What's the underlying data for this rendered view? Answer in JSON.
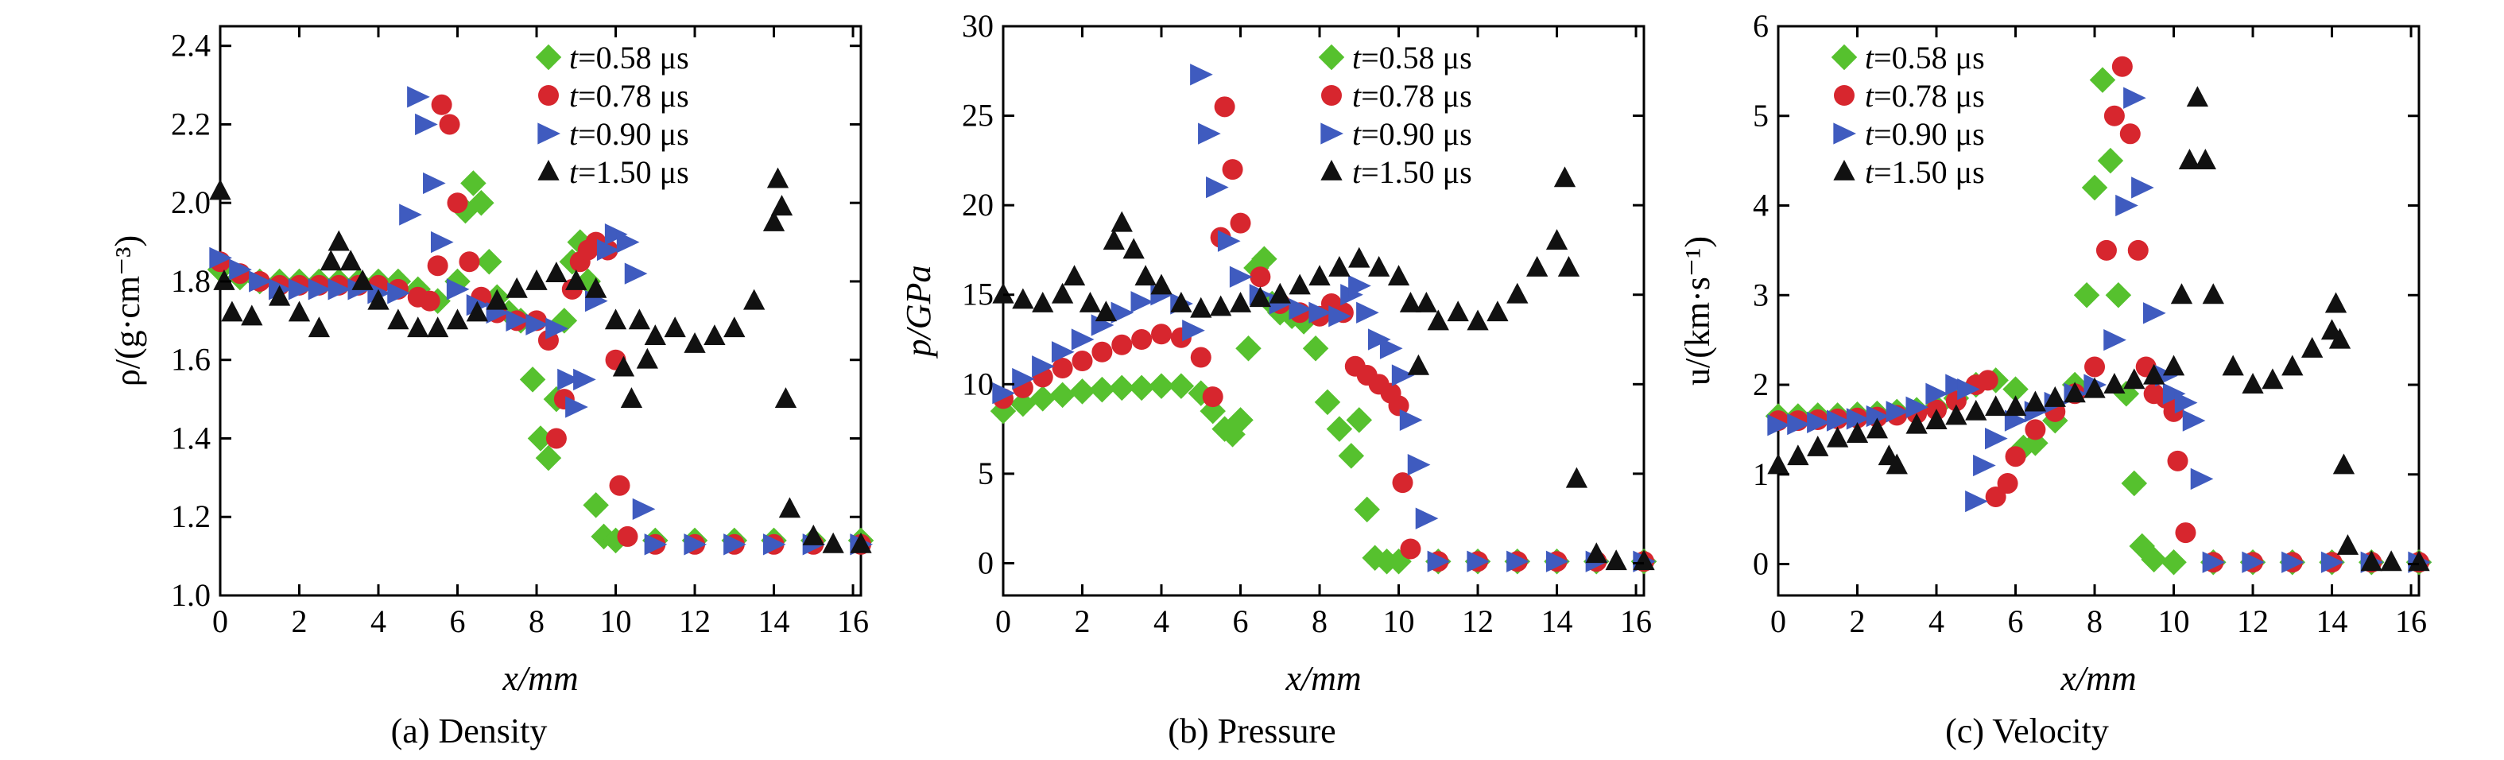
{
  "series_meta": [
    {
      "key": "t058",
      "label": "t=0.58 μs",
      "prefix": "t",
      "suffix": "=0.58 μs",
      "color": "#56c12e",
      "marker": "diamond"
    },
    {
      "key": "t078",
      "label": "t=0.78 μs",
      "prefix": "t",
      "suffix": "=0.78 μs",
      "color": "#d7262e",
      "marker": "circle"
    },
    {
      "key": "t090",
      "label": "t=0.90 μs",
      "prefix": "t",
      "suffix": "=0.90 μs",
      "color": "#3f5bbf",
      "marker": "triangle-right"
    },
    {
      "key": "t150",
      "label": "t=1.50 μs",
      "prefix": "t",
      "suffix": "=1.50 μs",
      "color": "#111111",
      "marker": "triangle-up"
    }
  ],
  "chart_data": [
    {
      "type": "scatter",
      "caption": "(a) Density",
      "xlabel": "x/mm",
      "ylabel": "ρ/(g·cm⁻³)",
      "xlim": [
        0,
        16.2
      ],
      "ylim": [
        1.0,
        2.45
      ],
      "xticks": [
        0,
        2,
        4,
        6,
        8,
        10,
        12,
        14,
        16
      ],
      "yticks": [
        1.0,
        1.2,
        1.4,
        1.6,
        1.8,
        2.0,
        2.2,
        2.4
      ],
      "ytick_decimals": 1,
      "grid": false,
      "legend_position": "top-right",
      "series": [
        {
          "name": "t=0.58 μs",
          "x": [
            0,
            0.5,
            1,
            1.5,
            2,
            2.5,
            3,
            3.5,
            4,
            4.5,
            5,
            5.5,
            6,
            6.2,
            6.4,
            6.6,
            6.8,
            7,
            7.3,
            7.6,
            7.9,
            8.1,
            8.3,
            8.5,
            8.7,
            8.9,
            9.1,
            9.3,
            9.5,
            9.7,
            10,
            11,
            12,
            13,
            14,
            15,
            16.2
          ],
          "y": [
            1.83,
            1.81,
            1.8,
            1.8,
            1.8,
            1.8,
            1.8,
            1.8,
            1.8,
            1.8,
            1.78,
            1.75,
            1.8,
            1.98,
            2.05,
            2.0,
            1.85,
            1.76,
            1.72,
            1.7,
            1.55,
            1.4,
            1.35,
            1.5,
            1.7,
            1.85,
            1.9,
            1.8,
            1.23,
            1.15,
            1.14,
            1.14,
            1.14,
            1.14,
            1.14,
            1.14,
            1.14
          ]
        },
        {
          "name": "t=0.78 μs",
          "x": [
            0,
            0.5,
            1,
            1.5,
            2,
            2.5,
            3,
            3.5,
            4,
            4.5,
            5,
            5.3,
            5.5,
            5.6,
            5.8,
            6,
            6.3,
            6.6,
            7,
            7.5,
            8,
            8.3,
            8.5,
            8.7,
            8.9,
            9.1,
            9.3,
            9.5,
            9.8,
            10,
            10.1,
            10.3,
            11,
            12,
            13,
            14,
            15,
            16.2
          ],
          "y": [
            1.85,
            1.82,
            1.8,
            1.79,
            1.79,
            1.79,
            1.79,
            1.79,
            1.79,
            1.78,
            1.76,
            1.75,
            1.84,
            2.25,
            2.2,
            2.0,
            1.85,
            1.76,
            1.72,
            1.7,
            1.7,
            1.65,
            1.4,
            1.5,
            1.78,
            1.85,
            1.88,
            1.9,
            1.88,
            1.6,
            1.28,
            1.15,
            1.13,
            1.13,
            1.13,
            1.13,
            1.13,
            1.13
          ]
        },
        {
          "name": "t=0.90 μs",
          "x": [
            0,
            0.5,
            1,
            1.5,
            2,
            2.5,
            3,
            3.5,
            4,
            4.5,
            4.8,
            5,
            5.2,
            5.4,
            5.6,
            6,
            6.5,
            7,
            7.5,
            8,
            8.5,
            8.8,
            9,
            9.2,
            9.5,
            9.8,
            10,
            10.3,
            10.5,
            10.7,
            11,
            12,
            13,
            14,
            15,
            16.2
          ],
          "y": [
            1.86,
            1.83,
            1.8,
            1.78,
            1.78,
            1.78,
            1.78,
            1.78,
            1.77,
            1.77,
            1.97,
            2.27,
            2.2,
            2.05,
            1.9,
            1.78,
            1.74,
            1.72,
            1.7,
            1.69,
            1.68,
            1.55,
            1.48,
            1.55,
            1.75,
            1.88,
            1.92,
            1.9,
            1.82,
            1.22,
            1.13,
            1.13,
            1.13,
            1.13,
            1.13,
            1.13
          ]
        },
        {
          "name": "t=1.50 μs",
          "x": [
            0,
            0.1,
            0.3,
            0.8,
            1.5,
            2,
            2.5,
            2.8,
            3,
            3.3,
            3.6,
            4,
            4.5,
            5,
            5.5,
            6,
            6.5,
            7,
            7.5,
            8,
            8.5,
            9,
            9.5,
            10,
            10.2,
            10.4,
            10.6,
            10.8,
            11,
            11.5,
            12,
            12.5,
            13,
            13.5,
            14,
            14.1,
            14.2,
            14.3,
            14.4,
            15,
            15.5,
            16.2
          ],
          "y": [
            2.03,
            1.8,
            1.72,
            1.71,
            1.76,
            1.72,
            1.68,
            1.85,
            1.9,
            1.85,
            1.8,
            1.75,
            1.7,
            1.68,
            1.68,
            1.7,
            1.72,
            1.75,
            1.78,
            1.8,
            1.82,
            1.8,
            1.78,
            1.7,
            1.58,
            1.5,
            1.7,
            1.6,
            1.66,
            1.68,
            1.64,
            1.66,
            1.68,
            1.75,
            1.95,
            2.06,
            1.99,
            1.5,
            1.22,
            1.15,
            1.13,
            1.13
          ]
        }
      ]
    },
    {
      "type": "scatter",
      "caption": "(b) Pressure",
      "xlabel": "x/mm",
      "ylabel": "p/GPa",
      "xlim": [
        0,
        16.2
      ],
      "ylim": [
        -1.8,
        30
      ],
      "xticks": [
        0,
        2,
        4,
        6,
        8,
        10,
        12,
        14,
        16
      ],
      "yticks": [
        0,
        5,
        10,
        15,
        20,
        25,
        30
      ],
      "ytick_decimals": 0,
      "grid": false,
      "legend_position": "top-right",
      "series": [
        {
          "name": "t=0.58 μs",
          "x": [
            0,
            0.5,
            1,
            1.5,
            2,
            2.5,
            3,
            3.5,
            4,
            4.5,
            5,
            5.3,
            5.6,
            5.8,
            6,
            6.2,
            6.4,
            6.6,
            6.8,
            7,
            7.3,
            7.6,
            7.9,
            8.2,
            8.5,
            8.8,
            9,
            9.2,
            9.4,
            9.7,
            10,
            11,
            12,
            13,
            14,
            15,
            16.2
          ],
          "y": [
            8.5,
            8.9,
            9.2,
            9.4,
            9.6,
            9.7,
            9.8,
            9.8,
            9.9,
            9.9,
            9.5,
            8.5,
            7.5,
            7.2,
            8.0,
            12.0,
            16.5,
            17.0,
            14.5,
            14.0,
            13.8,
            13.5,
            12.0,
            9.0,
            7.5,
            6.0,
            8.0,
            3.0,
            0.3,
            0.1,
            0.1,
            0.1,
            0.1,
            0.1,
            0.1,
            0.1,
            0.1
          ]
        },
        {
          "name": "t=0.78 μs",
          "x": [
            0,
            0.5,
            1,
            1.5,
            2,
            2.5,
            3,
            3.5,
            4,
            4.5,
            5,
            5.3,
            5.5,
            5.6,
            5.8,
            6,
            6.5,
            7,
            7.5,
            8,
            8.3,
            8.6,
            8.9,
            9.2,
            9.5,
            9.8,
            10,
            10.1,
            10.3,
            11,
            12,
            13,
            14,
            15,
            16.2
          ],
          "y": [
            9.2,
            9.8,
            10.4,
            10.9,
            11.3,
            11.8,
            12.2,
            12.5,
            12.8,
            12.6,
            11.5,
            9.3,
            18.2,
            25.5,
            22.0,
            19.0,
            16.0,
            14.5,
            14.0,
            13.8,
            14.5,
            14.0,
            11.0,
            10.5,
            10.0,
            9.5,
            8.8,
            4.5,
            0.8,
            0.1,
            0.1,
            0.1,
            0.1,
            0.1,
            0.1
          ]
        },
        {
          "name": "t=0.90 μs",
          "x": [
            0,
            0.5,
            1,
            1.5,
            2,
            2.5,
            3,
            3.5,
            4,
            4.5,
            4.8,
            5,
            5.2,
            5.4,
            5.7,
            6,
            6.5,
            7,
            7.5,
            8,
            8.5,
            8.8,
            9,
            9.2,
            9.5,
            9.8,
            10.1,
            10.3,
            10.5,
            10.7,
            11,
            12,
            13,
            14,
            15,
            16.2
          ],
          "y": [
            9.5,
            10.3,
            11.0,
            11.8,
            12.5,
            13.3,
            14.0,
            14.6,
            15.0,
            14.5,
            13.0,
            27.3,
            24.0,
            21.0,
            18.0,
            16.0,
            15.0,
            14.5,
            14.2,
            14.0,
            13.8,
            15.0,
            15.5,
            14.0,
            12.5,
            12.0,
            10.5,
            8.0,
            5.5,
            2.5,
            0.1,
            0.1,
            0.1,
            0.1,
            0.1,
            0.1
          ]
        },
        {
          "name": "t=1.50 μs",
          "x": [
            0,
            0.5,
            1,
            1.5,
            1.8,
            2.2,
            2.6,
            2.8,
            3,
            3.3,
            3.6,
            4,
            4.5,
            5,
            5.5,
            6,
            6.5,
            7,
            7.5,
            8,
            8.5,
            9,
            9.5,
            10,
            10.3,
            10.5,
            10.7,
            11,
            11.5,
            12,
            12.5,
            13,
            13.5,
            14,
            14.2,
            14.3,
            14.5,
            15,
            15.5,
            16.2
          ],
          "y": [
            15.0,
            14.7,
            14.5,
            15.0,
            16.0,
            14.5,
            14.0,
            18.0,
            19.0,
            17.5,
            16.0,
            15.5,
            14.5,
            14.2,
            14.3,
            14.5,
            14.8,
            15.0,
            15.5,
            16.0,
            16.5,
            17.0,
            16.5,
            16.0,
            14.5,
            11.0,
            14.5,
            13.5,
            14.0,
            13.5,
            14.0,
            15.0,
            16.5,
            18.0,
            21.5,
            16.5,
            4.7,
            0.5,
            0.1,
            0.1
          ]
        }
      ]
    },
    {
      "type": "scatter",
      "caption": "(c) Velocity",
      "xlabel": "x/mm",
      "ylabel": "u/(km·s⁻¹)",
      "xlim": [
        0,
        16.2
      ],
      "ylim": [
        -0.35,
        6
      ],
      "xticks": [
        0,
        2,
        4,
        6,
        8,
        10,
        12,
        14,
        16
      ],
      "yticks": [
        0,
        1,
        2,
        3,
        4,
        5,
        6
      ],
      "ytick_decimals": 0,
      "grid": false,
      "legend_position": "top-left",
      "series": [
        {
          "name": "t=0.58 μs",
          "x": [
            0,
            0.5,
            1,
            1.5,
            2,
            2.5,
            3,
            3.5,
            4,
            4.5,
            5,
            5.5,
            6,
            6.2,
            6.5,
            7,
            7.5,
            7.8,
            8,
            8.2,
            8.4,
            8.6,
            8.8,
            9,
            9.2,
            9.5,
            10,
            11,
            12,
            13,
            14,
            15,
            16.2
          ],
          "y": [
            1.65,
            1.65,
            1.66,
            1.66,
            1.67,
            1.68,
            1.7,
            1.72,
            1.75,
            1.85,
            2.0,
            2.05,
            1.95,
            1.3,
            1.35,
            1.6,
            2.0,
            3.0,
            4.2,
            5.4,
            4.5,
            3.0,
            1.9,
            0.9,
            0.2,
            0.05,
            0.02,
            0.02,
            0.02,
            0.02,
            0.02,
            0.02,
            0.02
          ]
        },
        {
          "name": "t=0.78 μs",
          "x": [
            0,
            0.5,
            1,
            1.5,
            2,
            2.5,
            3,
            3.5,
            4,
            4.5,
            5,
            5.3,
            5.5,
            5.8,
            6,
            6.5,
            7,
            7.5,
            8,
            8.3,
            8.5,
            8.7,
            8.9,
            9.1,
            9.3,
            9.5,
            9.8,
            10,
            10.1,
            10.3,
            11,
            12,
            13,
            14,
            15,
            16.2
          ],
          "y": [
            1.6,
            1.6,
            1.61,
            1.62,
            1.63,
            1.64,
            1.66,
            1.68,
            1.72,
            1.82,
            2.0,
            2.05,
            0.75,
            0.9,
            1.2,
            1.5,
            1.7,
            1.9,
            2.2,
            3.5,
            5.0,
            5.55,
            4.8,
            3.5,
            2.2,
            1.9,
            1.85,
            1.7,
            1.15,
            0.35,
            0.02,
            0.02,
            0.02,
            0.02,
            0.02,
            0.02
          ]
        },
        {
          "name": "t=0.90 μs",
          "x": [
            0,
            0.5,
            1,
            1.5,
            2,
            2.5,
            3,
            3.5,
            4,
            4.5,
            4.8,
            5,
            5.2,
            5.5,
            6,
            6.5,
            7,
            7.5,
            8,
            8.5,
            8.8,
            9,
            9.2,
            9.5,
            9.8,
            10,
            10.3,
            10.5,
            10.7,
            11,
            12,
            13,
            14,
            15,
            16.2
          ],
          "y": [
            1.55,
            1.56,
            1.58,
            1.6,
            1.62,
            1.65,
            1.7,
            1.75,
            1.9,
            2.0,
            1.95,
            0.7,
            1.1,
            1.4,
            1.6,
            1.7,
            1.8,
            1.9,
            2.0,
            2.5,
            4.0,
            5.2,
            4.2,
            2.8,
            2.1,
            1.9,
            1.8,
            1.6,
            0.95,
            0.02,
            0.02,
            0.02,
            0.02,
            0.02,
            0.02
          ]
        },
        {
          "name": "t=1.50 μs",
          "x": [
            0,
            0.5,
            1,
            1.5,
            2,
            2.5,
            2.8,
            3,
            3.5,
            4,
            4.5,
            5,
            5.5,
            6,
            6.5,
            7,
            7.5,
            8,
            8.5,
            9,
            9.5,
            10,
            10.2,
            10.4,
            10.6,
            10.8,
            11,
            11.5,
            12,
            12.5,
            13,
            13.5,
            14,
            14.1,
            14.2,
            14.3,
            14.4,
            15,
            15.5,
            16.2
          ],
          "y": [
            1.1,
            1.2,
            1.3,
            1.4,
            1.45,
            1.5,
            1.2,
            1.1,
            1.55,
            1.6,
            1.65,
            1.7,
            1.75,
            1.75,
            1.8,
            1.85,
            1.9,
            1.95,
            2.0,
            2.05,
            2.1,
            2.2,
            3.0,
            4.5,
            5.2,
            4.5,
            3.0,
            2.2,
            2.0,
            2.05,
            2.2,
            2.4,
            2.6,
            2.9,
            2.5,
            1.1,
            0.2,
            0.02,
            0.02,
            0.02
          ]
        }
      ]
    }
  ]
}
